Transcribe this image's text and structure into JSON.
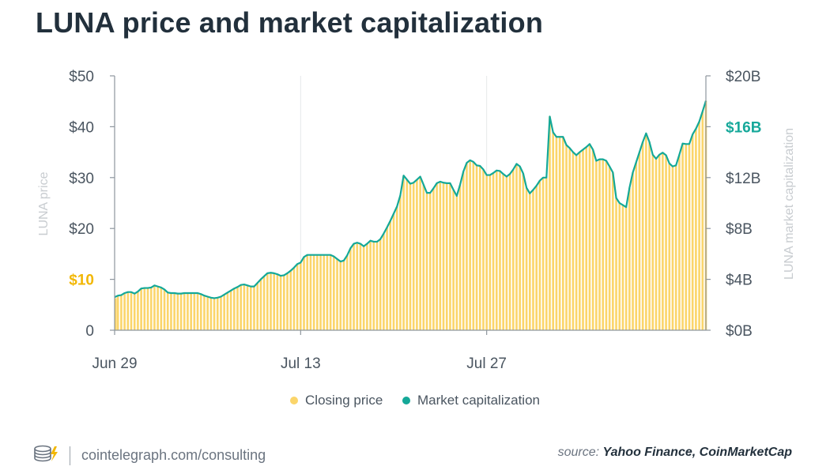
{
  "chart_data": {
    "type": "bar",
    "title": "LUNA price and market capitalization",
    "ylabel": "LUNA price",
    "y2label": "LUNA market capitalization",
    "ylim": [
      0,
      50
    ],
    "y2lim": [
      0,
      20
    ],
    "yticks": [
      "0",
      "$10",
      "$20",
      "$30",
      "$40",
      "$50"
    ],
    "yticks_values": [
      0,
      10,
      20,
      30,
      40,
      50
    ],
    "yticks_highlight": "$10",
    "y2ticks": [
      "$0B",
      "$4B",
      "$8B",
      "$12B",
      "$16B",
      "$20B"
    ],
    "y2ticks_values": [
      0,
      4,
      8,
      12,
      16,
      20
    ],
    "y2ticks_highlight": "$16B",
    "xticks": [
      "Jun 29",
      "Jul 13",
      "Jul 27"
    ],
    "xticks_index": [
      0,
      56,
      112
    ],
    "colors": {
      "price": "#fbd56a",
      "market_cap": "#14a898"
    },
    "series": [
      {
        "name": "Closing price",
        "type": "bar",
        "axis": "left",
        "values": [
          6.3,
          6.8,
          6.9,
          7.3,
          7.5,
          7.5,
          7.2,
          7.6,
          8.2,
          8.3,
          8.3,
          8.4,
          8.8,
          8.6,
          8.4,
          8.0,
          7.4,
          7.3,
          7.3,
          7.2,
          7.2,
          7.3,
          7.3,
          7.3,
          7.3,
          7.3,
          7.1,
          6.8,
          6.6,
          6.4,
          6.3,
          6.4,
          6.6,
          7.0,
          7.4,
          7.8,
          8.2,
          8.5,
          8.9,
          9.0,
          8.8,
          8.6,
          8.6,
          9.3,
          10.0,
          10.6,
          11.2,
          11.3,
          11.2,
          11.0,
          10.7,
          10.8,
          11.2,
          11.7,
          12.3,
          13.0,
          13.3,
          14.4,
          14.8,
          14.8,
          14.8,
          14.8,
          14.8,
          14.8,
          14.8,
          14.8,
          14.5,
          14.0,
          13.5,
          13.7,
          14.7,
          16.1,
          17.0,
          17.2,
          17.0,
          16.5,
          17.0,
          17.6,
          17.4,
          17.4,
          17.9,
          19.0,
          20.2,
          21.5,
          22.9,
          24.3,
          26.5,
          30.4,
          29.6,
          28.8,
          29.0,
          29.6,
          30.2,
          28.6,
          27.0,
          27.0,
          27.9,
          28.9,
          29.2,
          29.0,
          28.9,
          28.9,
          27.6,
          26.4,
          28.6,
          31.2,
          32.9,
          33.4,
          33.1,
          32.4,
          32.3,
          31.6,
          30.5,
          30.5,
          30.9,
          31.4,
          31.3,
          30.7,
          30.2,
          30.7,
          31.6,
          32.7,
          32.2,
          30.8,
          28.0,
          26.9,
          27.6,
          28.4,
          29.4,
          30.0,
          30.0,
          42.0,
          38.9,
          38.0,
          38.0,
          38.0,
          36.4,
          35.8,
          35.0,
          34.4,
          35.0,
          35.5,
          36.0,
          36.6,
          35.5,
          33.3,
          33.6,
          33.6,
          33.3,
          32.2,
          31.0,
          26.0,
          25.0,
          24.6,
          24.2,
          28.0,
          31.0,
          33.0,
          35.0,
          37.0,
          38.7,
          37.0,
          34.5,
          33.7,
          34.5,
          34.9,
          34.4,
          32.8,
          32.2,
          32.4,
          34.5,
          36.7,
          36.6,
          36.6,
          38.5,
          39.6,
          41.0,
          43.0,
          45.1
        ]
      },
      {
        "name": "Market capitalization",
        "type": "line",
        "axis": "right",
        "values": [
          2.6,
          2.72,
          2.76,
          2.92,
          3.0,
          3.0,
          2.88,
          3.04,
          3.28,
          3.32,
          3.32,
          3.36,
          3.52,
          3.44,
          3.36,
          3.2,
          2.96,
          2.92,
          2.92,
          2.88,
          2.88,
          2.92,
          2.92,
          2.92,
          2.92,
          2.92,
          2.84,
          2.72,
          2.64,
          2.56,
          2.52,
          2.56,
          2.64,
          2.8,
          2.96,
          3.12,
          3.28,
          3.4,
          3.56,
          3.6,
          3.52,
          3.44,
          3.44,
          3.72,
          4.0,
          4.24,
          4.48,
          4.52,
          4.48,
          4.4,
          4.28,
          4.32,
          4.48,
          4.68,
          4.92,
          5.2,
          5.32,
          5.76,
          5.92,
          5.92,
          5.92,
          5.92,
          5.92,
          5.92,
          5.92,
          5.92,
          5.8,
          5.6,
          5.4,
          5.48,
          5.88,
          6.44,
          6.8,
          6.88,
          6.8,
          6.6,
          6.8,
          7.04,
          6.96,
          6.96,
          7.16,
          7.6,
          8.08,
          8.6,
          9.16,
          9.72,
          10.6,
          12.16,
          11.84,
          11.52,
          11.6,
          11.84,
          12.08,
          11.44,
          10.8,
          10.8,
          11.16,
          11.56,
          11.68,
          11.6,
          11.56,
          11.56,
          11.04,
          10.56,
          11.44,
          12.48,
          13.16,
          13.36,
          13.24,
          12.96,
          12.92,
          12.64,
          12.2,
          12.2,
          12.36,
          12.56,
          12.52,
          12.28,
          12.08,
          12.28,
          12.64,
          13.08,
          12.88,
          12.32,
          11.2,
          10.76,
          11.04,
          11.36,
          11.76,
          12.0,
          12.0,
          16.8,
          15.56,
          15.2,
          15.2,
          15.2,
          14.56,
          14.32,
          14.0,
          13.76,
          14.0,
          14.2,
          14.4,
          14.64,
          14.2,
          13.32,
          13.44,
          13.44,
          13.32,
          12.88,
          12.4,
          10.4,
          10.0,
          9.84,
          9.68,
          11.2,
          12.4,
          13.2,
          14.0,
          14.8,
          15.48,
          14.8,
          13.8,
          13.48,
          13.8,
          13.96,
          13.76,
          13.12,
          12.88,
          12.96,
          13.8,
          14.68,
          14.64,
          14.64,
          15.4,
          15.84,
          16.4,
          17.2,
          18.04
        ]
      }
    ],
    "legend": [
      "Closing price",
      "Market capitalization"
    ],
    "legend_position": "bottom-center",
    "grid": "vertical"
  },
  "footer": {
    "site": "cointelegraph.com/consulting",
    "source_prefix": "source:",
    "source_names": "Yahoo Finance, CoinMarketCap"
  }
}
